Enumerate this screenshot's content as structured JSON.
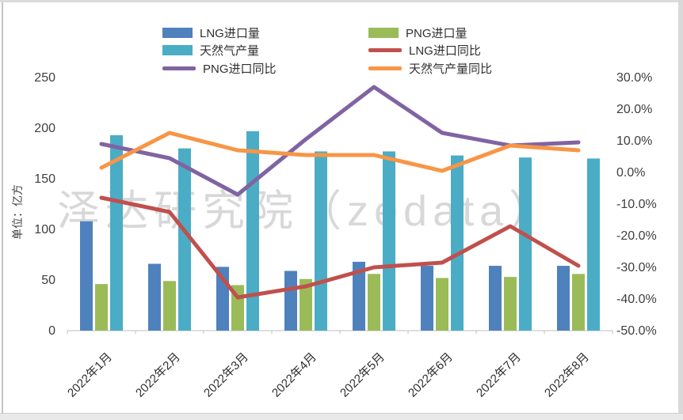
{
  "page": {
    "watermark": "泽达研究院（zedata）"
  },
  "legend": {
    "items": [
      {
        "label": "LNG进口量",
        "marker": "bar",
        "color": "#4F81BD"
      },
      {
        "label": "PNG进口量",
        "marker": "bar",
        "color": "#9BBB59"
      },
      {
        "label": "天然气产量",
        "marker": "bar",
        "color": "#4BACC6"
      },
      {
        "label": "LNG进口同比",
        "marker": "line",
        "color": "#C0504D"
      },
      {
        "label": "PNG进口同比",
        "marker": "line",
        "color": "#8064A2"
      },
      {
        "label": "天然气产量同比",
        "marker": "line",
        "color": "#F79646"
      }
    ]
  },
  "chart_data": {
    "type": "bar+line combo, dual axis",
    "categories": [
      "2022年1月",
      "2022年2月",
      "2022年3月",
      "2022年4月",
      "2022年5月",
      "2022年6月",
      "2022年7月",
      "2022年8月"
    ],
    "bar_series": [
      {
        "name": "LNG进口量",
        "key": "lng-import",
        "color": "#4F81BD",
        "axis": "left",
        "values": [
          108,
          66,
          63,
          59,
          68,
          64,
          64,
          64
        ]
      },
      {
        "name": "PNG进口量",
        "key": "png-import",
        "color": "#9BBB59",
        "axis": "left",
        "values": [
          46,
          49,
          45,
          51,
          56,
          52,
          53,
          56
        ]
      },
      {
        "name": "天然气产量",
        "key": "gas-production",
        "color": "#4BACC6",
        "axis": "left",
        "values": [
          193,
          180,
          197,
          177,
          177,
          173,
          171,
          170
        ]
      }
    ],
    "line_series": [
      {
        "name": "LNG进口同比",
        "key": "lng-import-yoy",
        "color": "#C0504D",
        "axis": "right",
        "values": [
          -8,
          -12.5,
          -39.5,
          -36,
          -30,
          -28.5,
          -17,
          -29.5
        ]
      },
      {
        "name": "PNG进口同比",
        "key": "png-import-yoy",
        "color": "#8064A2",
        "axis": "right",
        "values": [
          9,
          4.5,
          -7,
          10.5,
          27,
          12.5,
          8.5,
          9.5
        ]
      },
      {
        "name": "天然气产量同比",
        "key": "gas-production-yoy",
        "color": "#F79646",
        "axis": "right",
        "values": [
          1.5,
          12.5,
          7,
          5.5,
          5.5,
          0.5,
          8.5,
          7
        ]
      }
    ],
    "left_axis": {
      "title": "单位：亿方",
      "min": 0,
      "max": 250,
      "ticks": [
        "250",
        "200",
        "150",
        "100",
        "50",
        "0"
      ]
    },
    "right_axis": {
      "min": -50,
      "max": 30,
      "ticks": [
        "30.0%",
        "20.0%",
        "10.0%",
        "0.0%",
        "-10.0%",
        "-20.0%",
        "-30.0%",
        "-40.0%",
        "-50.0%"
      ]
    },
    "grid": "off",
    "legend_position": "top"
  }
}
